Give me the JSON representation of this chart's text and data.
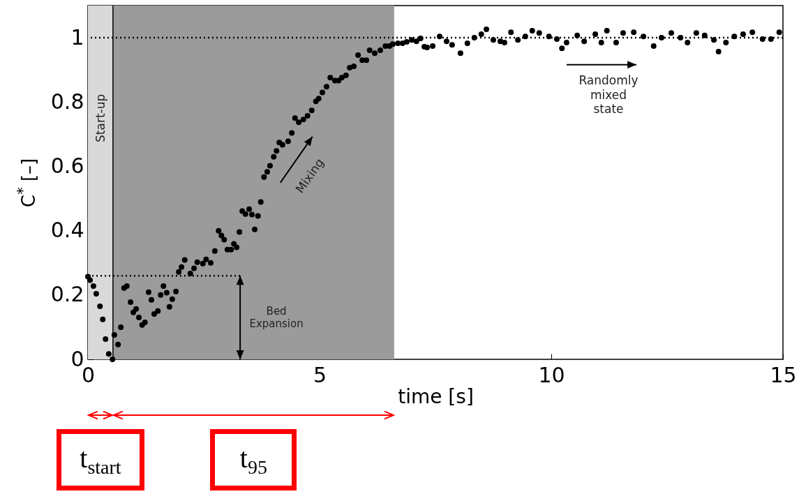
{
  "chart_data": {
    "type": "scatter",
    "xlabel": "time [s]",
    "ylabel": "C$^{*}$ [–]",
    "xlim": [
      0,
      15
    ],
    "ylim": [
      0,
      1.1
    ],
    "xticks": [
      0,
      5,
      10,
      15
    ],
    "yticks": [
      0,
      0.2,
      0.4,
      0.6,
      0.8,
      1
    ],
    "grid": false,
    "marker": "circle",
    "series": [
      {
        "color": "#000000",
        "x": [
          0,
          0.045,
          0.12,
          0.18,
          0.26,
          0.32,
          0.38,
          0.45,
          0.53,
          0.57,
          0.65,
          0.71,
          0.78,
          0.84,
          0.92,
          0.98,
          1.04,
          1.1,
          1.17,
          1.23,
          1.31,
          1.37,
          1.43,
          1.51,
          1.57,
          1.63,
          1.7,
          1.76,
          1.82,
          1.9,
          1.96,
          2.02,
          2.09,
          2.21,
          2.29,
          2.36,
          2.48,
          2.55,
          2.65,
          2.74,
          2.82,
          2.88,
          2.94,
          3.01,
          3.09,
          3.15,
          3.21,
          3.27,
          3.33,
          3.4,
          3.48,
          3.54,
          3.6,
          3.67,
          3.73,
          3.8,
          3.87,
          3.93,
          4.01,
          4.07,
          4.13,
          4.2,
          4.32,
          4.4,
          4.47,
          4.55,
          4.65,
          4.74,
          4.83,
          4.92,
          4.98,
          5.06,
          5.15,
          5.23,
          5.33,
          5.41,
          5.48,
          5.57,
          5.65,
          5.74,
          5.83,
          5.92,
          6.01,
          6.08,
          6.19,
          6.31,
          6.42,
          6.51,
          6.58,
          6.69,
          6.79,
          6.88,
          6.99,
          7.09,
          7.18,
          7.26,
          7.32,
          7.44,
          7.59,
          7.74,
          7.86,
          8.04,
          8.19,
          8.34,
          8.49,
          8.6,
          8.75,
          8.9,
          8.99,
          9.13,
          9.28,
          9.44,
          9.59,
          9.74,
          9.95,
          10.12,
          10.23,
          10.33,
          10.56,
          10.71,
          10.95,
          11.08,
          11.2,
          11.4,
          11.55,
          11.78,
          11.99,
          12.21,
          12.38,
          12.59,
          12.79,
          12.94,
          13.13,
          13.31,
          13.51,
          13.61,
          13.77,
          13.95,
          14.14,
          14.34,
          14.56,
          14.74,
          14.92
        ],
        "values": [
          0.257,
          0.246,
          0.228,
          0.204,
          0.165,
          0.124,
          0.063,
          0.017,
          0,
          0.076,
          0.046,
          0.1,
          0.222,
          0.228,
          0.178,
          0.146,
          0.157,
          0.13,
          0.107,
          0.115,
          0.209,
          0.185,
          0.141,
          0.15,
          0.2,
          0.228,
          0.207,
          0.163,
          0.187,
          0.211,
          0.272,
          0.287,
          0.309,
          0.267,
          0.283,
          0.302,
          0.298,
          0.311,
          0.3,
          0.337,
          0.4,
          0.385,
          0.372,
          0.341,
          0.341,
          0.359,
          0.348,
          0.396,
          0.461,
          0.452,
          0.467,
          0.45,
          0.404,
          0.446,
          0.489,
          0.567,
          0.583,
          0.602,
          0.63,
          0.648,
          0.674,
          0.667,
          0.678,
          0.704,
          0.75,
          0.737,
          0.746,
          0.757,
          0.774,
          0.802,
          0.811,
          0.83,
          0.848,
          0.876,
          0.867,
          0.867,
          0.876,
          0.883,
          0.907,
          0.911,
          0.946,
          0.93,
          0.93,
          0.961,
          0.952,
          0.961,
          0.974,
          0.974,
          0.98,
          0.983,
          0.983,
          0.987,
          0.993,
          0.989,
          0.998,
          0.972,
          0.97,
          0.974,
          1.004,
          0.989,
          0.978,
          0.952,
          0.983,
          1,
          1.011,
          1.026,
          0.993,
          0.989,
          0.985,
          1.017,
          0.993,
          1.004,
          1.022,
          1.015,
          1.004,
          0.996,
          0.967,
          0.985,
          1.007,
          0.989,
          1.011,
          0.985,
          1.022,
          0.985,
          1.015,
          1.017,
          1.004,
          0.974,
          1,
          1.015,
          1,
          0.985,
          1.015,
          1.007,
          0.993,
          0.957,
          0.985,
          1.004,
          1.011,
          1.017,
          0.996,
          0.996,
          1.017
        ]
      }
    ],
    "bands": [
      {
        "axis": "x",
        "from": 0,
        "to": 0.54,
        "label": "Start-up",
        "color": "#d9d9d9"
      },
      {
        "axis": "x",
        "from": 0.54,
        "to": 6.61,
        "color": "#9b9b9b"
      }
    ],
    "ref_lines": [
      {
        "axis": "x",
        "value": 0.54,
        "color": "#000000",
        "line_style": "solid"
      },
      {
        "axis": "y",
        "value": 1,
        "color": "#000000",
        "line_style": "dotted"
      },
      {
        "axis": "y",
        "value": 0.26,
        "color": "#000000",
        "line_style": "dotted"
      }
    ],
    "annotations": [
      "Mixing",
      "Randomly mixed state",
      "Bed Expansion",
      "t$_{start}$",
      "t$_{95}$"
    ]
  }
}
